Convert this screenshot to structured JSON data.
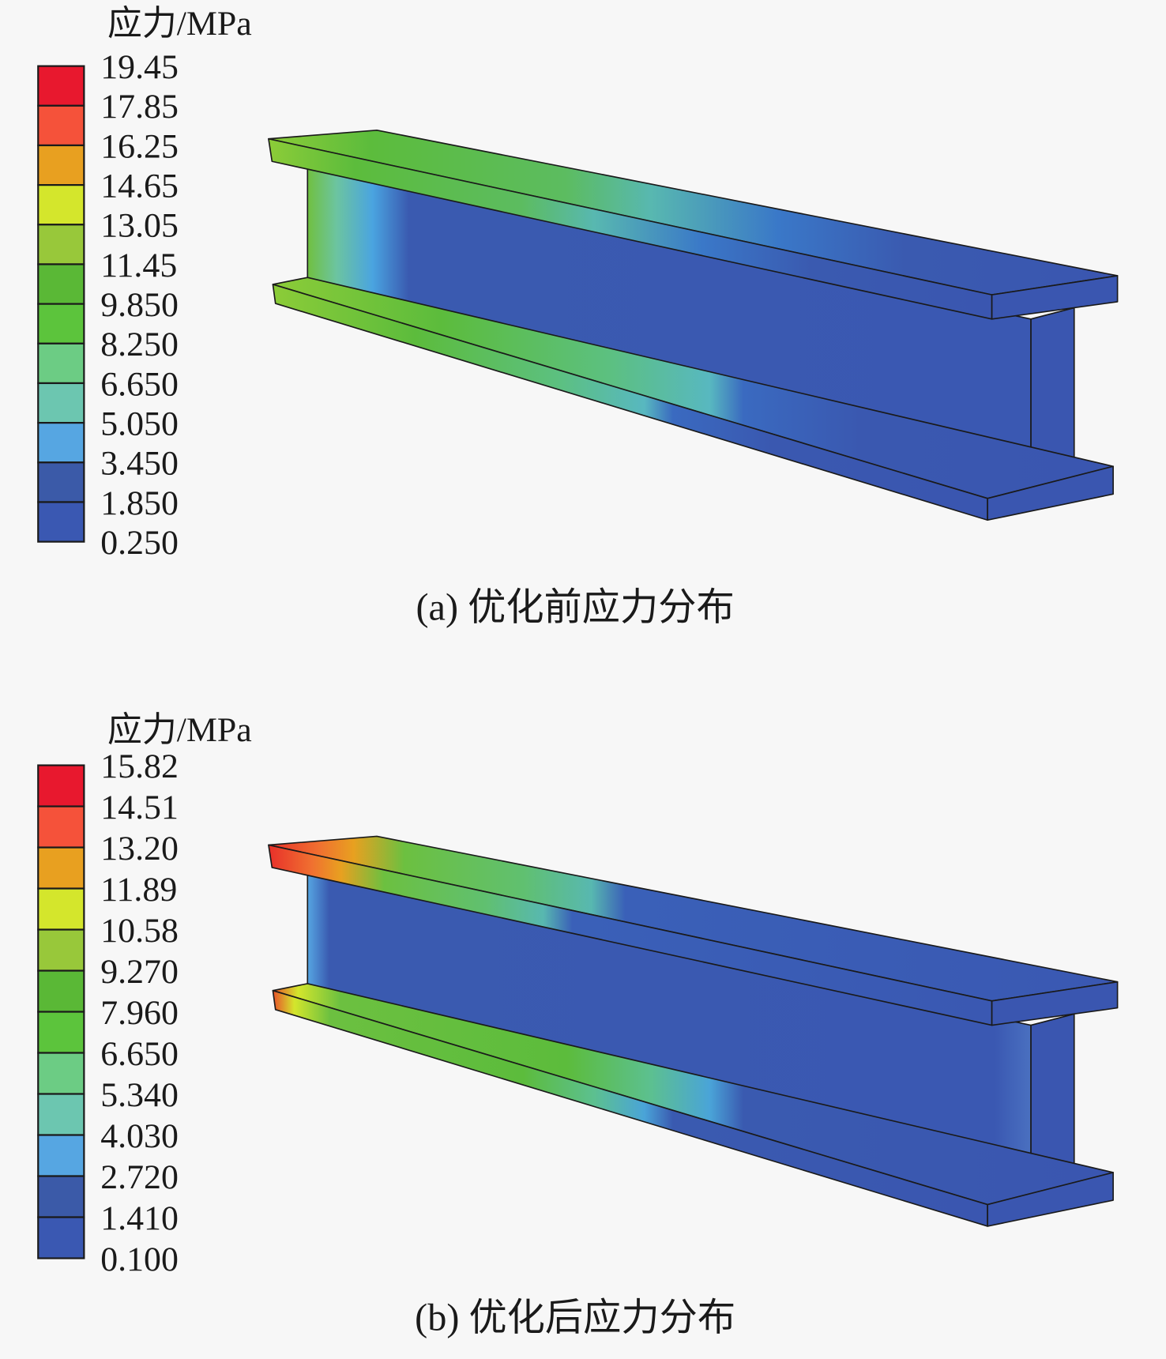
{
  "band_colors": [
    "#e8182e",
    "#f5523a",
    "#e8a020",
    "#d4e62c",
    "#98c83a",
    "#5ab836",
    "#5cc43c",
    "#6ccc84",
    "#6cc6b0",
    "#56a6e2",
    "#3b5aa8",
    "#3a58b2"
  ],
  "panels": [
    {
      "legend_title": "应力/MPa",
      "legend_values": [
        "19.45",
        "17.85",
        "16.25",
        "14.65",
        "13.05",
        "11.45",
        "9.850",
        "8.250",
        "6.650",
        "5.050",
        "3.450",
        "1.850",
        "0.250"
      ],
      "caption": "(a) 优化前应力分布"
    },
    {
      "legend_title": "应力/MPa",
      "legend_values": [
        "15.82",
        "14.51",
        "13.20",
        "11.89",
        "10.58",
        "9.270",
        "7.960",
        "6.650",
        "5.340",
        "4.030",
        "2.720",
        "1.410",
        "0.100"
      ],
      "caption": "(b) 优化后应力分布"
    }
  ]
}
